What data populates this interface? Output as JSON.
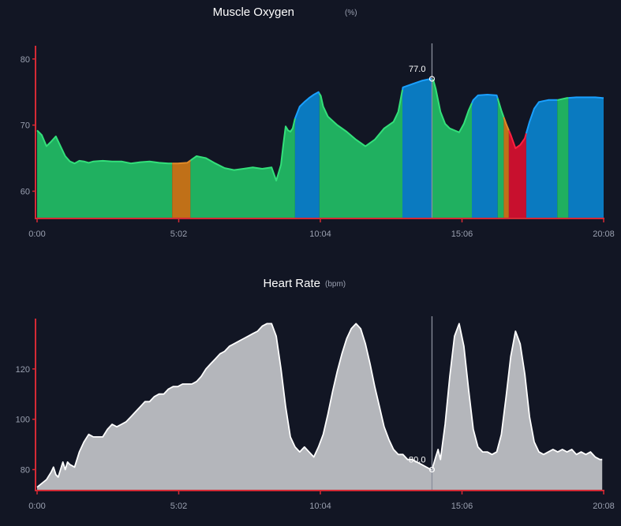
{
  "chart_data": [
    {
      "type": "area",
      "title": "Muscle Oxygen",
      "unit": "(%)",
      "x_ticks": [
        "0:00",
        "5:02",
        "10:04",
        "15:06",
        "20:08"
      ],
      "x_tick_seconds": [
        0,
        302,
        604,
        906,
        1208
      ],
      "xlim": [
        0,
        1208
      ],
      "y_ticks": [
        60,
        70,
        80
      ],
      "ylim": [
        56,
        82
      ],
      "marker": {
        "x": 842,
        "y": 77.0,
        "label": "77.0"
      },
      "zone_colors": {
        "green": "#20b060",
        "blue": "#0a7ac0",
        "orange": "#c07018",
        "red": "#c8102e"
      },
      "line_colors": {
        "green": "#33e07a",
        "blue": "#1aa0ff",
        "orange": "#e08a28",
        "red": "#ff2040"
      },
      "zones": [
        {
          "x0": 0,
          "x1": 288,
          "color": "green"
        },
        {
          "x0": 288,
          "x1": 327,
          "color": "orange"
        },
        {
          "x0": 327,
          "x1": 550,
          "color": "green"
        },
        {
          "x0": 550,
          "x1": 602,
          "color": "blue"
        },
        {
          "x0": 602,
          "x1": 779,
          "color": "green"
        },
        {
          "x0": 779,
          "x1": 842,
          "color": "blue"
        },
        {
          "x0": 842,
          "x1": 927,
          "color": "green"
        },
        {
          "x0": 927,
          "x1": 982,
          "color": "blue"
        },
        {
          "x0": 982,
          "x1": 995,
          "color": "green"
        },
        {
          "x0": 995,
          "x1": 1006,
          "color": "orange"
        },
        {
          "x0": 1006,
          "x1": 1043,
          "color": "red"
        },
        {
          "x0": 1043,
          "x1": 1109,
          "color": "blue"
        },
        {
          "x0": 1109,
          "x1": 1133,
          "color": "green"
        },
        {
          "x0": 1133,
          "x1": 1208,
          "color": "blue"
        }
      ],
      "x": [
        0,
        10,
        20,
        30,
        40,
        50,
        60,
        70,
        80,
        90,
        100,
        110,
        120,
        140,
        160,
        180,
        200,
        220,
        240,
        260,
        280,
        300,
        320,
        330,
        340,
        360,
        380,
        400,
        420,
        440,
        460,
        480,
        500,
        510,
        515,
        520,
        525,
        530,
        535,
        540,
        545,
        550,
        560,
        570,
        580,
        590,
        600,
        605,
        610,
        620,
        640,
        660,
        680,
        700,
        720,
        740,
        760,
        770,
        780,
        800,
        820,
        840,
        845,
        850,
        860,
        870,
        880,
        900,
        910,
        920,
        930,
        940,
        960,
        980,
        990,
        1000,
        1010,
        1020,
        1030,
        1040,
        1050,
        1060,
        1070,
        1090,
        1110,
        1130,
        1150,
        1170,
        1190,
        1205
      ],
      "values": [
        69.2,
        68.5,
        66.8,
        67.5,
        68.3,
        66.8,
        65.3,
        64.5,
        64.2,
        64.6,
        64.5,
        64.3,
        64.5,
        64.6,
        64.5,
        64.5,
        64.2,
        64.4,
        64.5,
        64.3,
        64.2,
        64.2,
        64.3,
        64.8,
        65.3,
        65.0,
        64.2,
        63.5,
        63.2,
        63.4,
        63.6,
        63.4,
        63.6,
        61.6,
        62.8,
        64.0,
        67.0,
        69.8,
        69.2,
        69.0,
        69.5,
        71.0,
        72.8,
        73.5,
        74.1,
        74.6,
        75.0,
        74.4,
        72.8,
        71.3,
        70.0,
        69.0,
        67.8,
        66.8,
        67.8,
        69.5,
        70.5,
        72.0,
        75.7,
        76.2,
        76.7,
        77.0,
        76.8,
        75.5,
        72.0,
        70.2,
        69.5,
        68.9,
        70.2,
        72.2,
        73.8,
        74.5,
        74.6,
        74.5,
        72.2,
        70.2,
        68.5,
        66.5,
        67.0,
        68.0,
        70.5,
        72.5,
        73.5,
        73.8,
        73.8,
        74.1,
        74.2,
        74.2,
        74.2,
        74.1
      ]
    },
    {
      "type": "area",
      "title": "Heart Rate",
      "unit": "(bpm)",
      "x_ticks": [
        "0:00",
        "5:02",
        "10:04",
        "15:06",
        "20:08"
      ],
      "x_tick_seconds": [
        0,
        302,
        604,
        906,
        1208
      ],
      "xlim": [
        0,
        1208
      ],
      "y_ticks": [
        80,
        100,
        120
      ],
      "ylim": [
        72,
        140
      ],
      "marker": {
        "x": 842,
        "y": 80.0,
        "label": "80.0"
      },
      "fill_color": "#b4b6bb",
      "line_color": "#ffffff",
      "x": [
        0,
        20,
        30,
        35,
        40,
        45,
        50,
        55,
        60,
        65,
        70,
        80,
        90,
        100,
        110,
        120,
        130,
        140,
        150,
        160,
        170,
        180,
        190,
        200,
        210,
        220,
        230,
        240,
        250,
        260,
        270,
        280,
        290,
        300,
        310,
        320,
        330,
        340,
        350,
        360,
        370,
        380,
        390,
        400,
        410,
        420,
        430,
        440,
        450,
        460,
        470,
        480,
        490,
        500,
        510,
        520,
        530,
        540,
        550,
        560,
        570,
        580,
        590,
        600,
        610,
        620,
        630,
        640,
        650,
        660,
        670,
        680,
        690,
        700,
        710,
        720,
        730,
        740,
        750,
        760,
        770,
        780,
        790,
        800,
        810,
        820,
        830,
        840,
        842,
        850,
        855,
        860,
        870,
        880,
        890,
        900,
        910,
        920,
        930,
        940,
        950,
        960,
        970,
        980,
        990,
        1000,
        1010,
        1020,
        1030,
        1040,
        1050,
        1060,
        1070,
        1080,
        1090,
        1100,
        1110,
        1120,
        1130,
        1140,
        1150,
        1160,
        1170,
        1180,
        1190,
        1200,
        1205
      ],
      "values": [
        73,
        76,
        79,
        81,
        78,
        77,
        80,
        83,
        80,
        83,
        82,
        81,
        87,
        91,
        94,
        93,
        93,
        93,
        96,
        98,
        97,
        98,
        99,
        101,
        103,
        105,
        107,
        107,
        109,
        110,
        110,
        112,
        113,
        113,
        114,
        114,
        114,
        115,
        117,
        120,
        122,
        124,
        126,
        127,
        129,
        130,
        131,
        132,
        133,
        134,
        135,
        137,
        138,
        138,
        133,
        120,
        105,
        93,
        89,
        87,
        89,
        87,
        85,
        89,
        94,
        102,
        111,
        119,
        126,
        132,
        136,
        138,
        136,
        130,
        122,
        113,
        105,
        97,
        92,
        88,
        86,
        86,
        84,
        84,
        83,
        82,
        81,
        80,
        80,
        85,
        88,
        84,
        98,
        117,
        133,
        138,
        129,
        112,
        96,
        89,
        87,
        87,
        86,
        87,
        94,
        109,
        125,
        135,
        130,
        118,
        101,
        91,
        87,
        86,
        87,
        88,
        87,
        88,
        87,
        88,
        86,
        87,
        86,
        87,
        85,
        84,
        84
      ]
    }
  ]
}
